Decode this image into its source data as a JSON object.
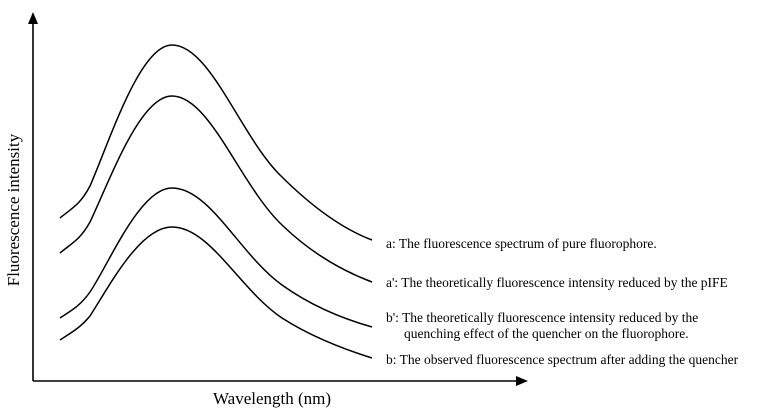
{
  "chart_data": {
    "type": "line",
    "xlabel": "Wavelength (nm)",
    "ylabel": "Fluorescence intensity",
    "curves": [
      {
        "id": "a",
        "lines": [
          "a: The fluorescence spectrum of pure fluorophore."
        ]
      },
      {
        "id": "a-prime",
        "lines": [
          "a': The theoretically fluorescence intensity reduced by the pIFE"
        ]
      },
      {
        "id": "b-prime",
        "lines": [
          "b': The theoretically fluorescence intensity reduced by the",
          "quenching effect of the quencher on the fluorophore."
        ]
      },
      {
        "id": "b",
        "lines": [
          "b: The observed fluorescence spectrum after adding the quencher"
        ]
      }
    ]
  }
}
